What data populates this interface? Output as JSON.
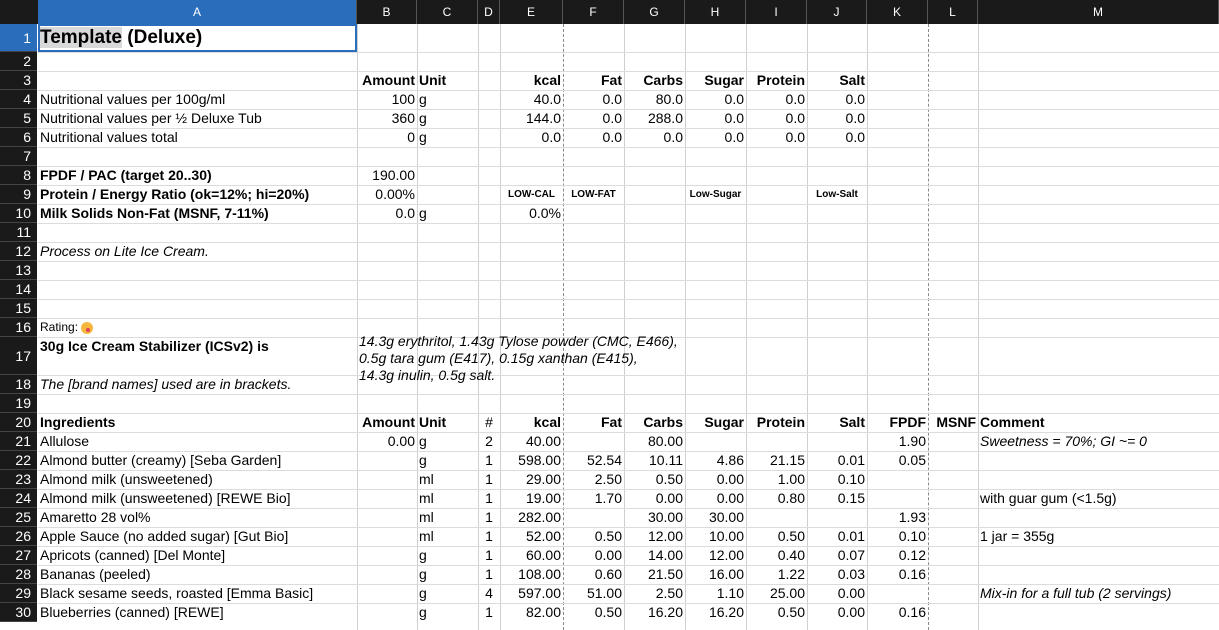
{
  "columns": [
    "A",
    "B",
    "C",
    "D",
    "E",
    "F",
    "G",
    "H",
    "I",
    "J",
    "K",
    "L",
    "M"
  ],
  "rows": [
    "1",
    "2",
    "3",
    "4",
    "5",
    "6",
    "7",
    "8",
    "9",
    "10",
    "11",
    "12",
    "13",
    "14",
    "15",
    "16",
    "17",
    "18",
    "19",
    "20",
    "21",
    "22",
    "23",
    "24",
    "25",
    "26",
    "27",
    "28",
    "29",
    "30"
  ],
  "title": {
    "main": "Template",
    "rest": " (Deluxe)"
  },
  "summary_header": {
    "amount": "Amount",
    "unit": "Unit",
    "kcal": "kcal",
    "fat": "Fat",
    "carbs": "Carbs",
    "sugar": "Sugar",
    "protein": "Protein",
    "salt": "Salt"
  },
  "summary_rows": [
    {
      "label": "Nutritional values per 100g/ml",
      "amount": "100",
      "unit": "g",
      "kcal": "40.0",
      "fat": "0.0",
      "carbs": "80.0",
      "sugar": "0.0",
      "protein": "0.0",
      "salt": "0.0"
    },
    {
      "label": "Nutritional values per ½ Deluxe Tub",
      "amount": "360",
      "unit": "g",
      "kcal": "144.0",
      "fat": "0.0",
      "carbs": "288.0",
      "sugar": "0.0",
      "protein": "0.0",
      "salt": "0.0"
    },
    {
      "label": "Nutritional values total",
      "amount": "0",
      "unit": "g",
      "kcal": "0.0",
      "fat": "0.0",
      "carbs": "0.0",
      "sugar": "0.0",
      "protein": "0.0",
      "salt": "0.0"
    }
  ],
  "metrics": {
    "fpdf_label": "FPDF / PAC (target 20..30)",
    "fpdf_value": "190.00",
    "ratio_label": "Protein / Energy Ratio (ok=12%; hi=20%)",
    "ratio_value": "0.00%",
    "msnf_label": "Milk Solids Non-Fat (MSNF, 7-11%)",
    "msnf_value": "0.0",
    "msnf_unit": "g",
    "msnf_pct": "0.0%"
  },
  "badges": {
    "lowcal": "LOW-CAL",
    "lowfat": "LOW-FAT",
    "lowsugar": "Low-Sugar",
    "lowsalt": "Low-Salt"
  },
  "notes": {
    "process": "Process on Lite Ice Cream.",
    "rating_label": "Rating: ",
    "stabilizer_label": "30g Ice Cream Stabilizer (ICSv2) is",
    "stabilizer_line1": "14.3g erythritol, 1.43g Tylose powder (CMC, E466),",
    "stabilizer_line2": "0.5g tara gum (E417), 0.15g xanthan (E415),",
    "stabilizer_line3": "14.3g inulin, 0.5g salt.",
    "brands": "The [brand names] used are in brackets."
  },
  "ingredient_header": {
    "name": "Ingredients",
    "amount": "Amount",
    "unit": "Unit",
    "num": "#",
    "kcal": "kcal",
    "fat": "Fat",
    "carbs": "Carbs",
    "sugar": "Sugar",
    "protein": "Protein",
    "salt": "Salt",
    "fpdf": "FPDF",
    "msnf": "MSNF",
    "comment": "Comment"
  },
  "ingredients": [
    {
      "name": "Allulose",
      "amount": "0.00",
      "unit": "g",
      "num": "2",
      "kcal": "40.00",
      "fat": "",
      "carbs": "80.00",
      "sugar": "",
      "protein": "",
      "salt": "",
      "fpdf": "1.90",
      "comment": "Sweetness = 70%; GI  ~= 0",
      "comment_italic": true
    },
    {
      "name": "Almond butter (creamy) [Seba Garden]",
      "amount": "",
      "unit": "g",
      "num": "1",
      "kcal": "598.00",
      "fat": "52.54",
      "carbs": "10.11",
      "sugar": "4.86",
      "protein": "21.15",
      "salt": "0.01",
      "fpdf": "0.05",
      "comment": "",
      "comment_italic": false
    },
    {
      "name": "Almond milk (unsweetened)",
      "amount": "",
      "unit": "ml",
      "num": "1",
      "kcal": "29.00",
      "fat": "2.50",
      "carbs": "0.50",
      "sugar": "0.00",
      "protein": "1.00",
      "salt": "0.10",
      "fpdf": "",
      "comment": "",
      "comment_italic": false
    },
    {
      "name": "Almond milk (unsweetened) [REWE Bio]",
      "amount": "",
      "unit": "ml",
      "num": "1",
      "kcal": "19.00",
      "fat": "1.70",
      "carbs": "0.00",
      "sugar": "0.00",
      "protein": "0.80",
      "salt": "0.15",
      "fpdf": "",
      "comment": "with guar gum (<1.5g)",
      "comment_italic": false
    },
    {
      "name": "Amaretto 28 vol%",
      "amount": "",
      "unit": "ml",
      "num": "1",
      "kcal": "282.00",
      "fat": "",
      "carbs": "30.00",
      "sugar": "30.00",
      "protein": "",
      "salt": "",
      "fpdf": "1.93",
      "comment": "",
      "comment_italic": false
    },
    {
      "name": "Apple Sauce (no added sugar) [Gut Bio]",
      "amount": "",
      "unit": "ml",
      "num": "1",
      "kcal": "52.00",
      "fat": "0.50",
      "carbs": "12.00",
      "sugar": "10.00",
      "protein": "0.50",
      "salt": "0.01",
      "fpdf": "0.10",
      "comment": "1 jar = 355g",
      "comment_italic": false
    },
    {
      "name": "Apricots (canned) [Del Monte]",
      "amount": "",
      "unit": "g",
      "num": "1",
      "kcal": "60.00",
      "fat": "0.00",
      "carbs": "14.00",
      "sugar": "12.00",
      "protein": "0.40",
      "salt": "0.07",
      "fpdf": "0.12",
      "comment": "",
      "comment_italic": false
    },
    {
      "name": "Bananas (peeled)",
      "amount": "",
      "unit": "g",
      "num": "1",
      "kcal": "108.00",
      "fat": "0.60",
      "carbs": "21.50",
      "sugar": "16.00",
      "protein": "1.22",
      "salt": "0.03",
      "fpdf": "0.16",
      "comment": "",
      "comment_italic": false
    },
    {
      "name": "Black sesame seeds, roasted [Emma Basic]",
      "amount": "",
      "unit": "g",
      "num": "4",
      "kcal": "597.00",
      "fat": "51.00",
      "carbs": "2.50",
      "sugar": "1.10",
      "protein": "25.00",
      "salt": "0.00",
      "fpdf": "",
      "comment": "Mix-in for a full tub (2 servings)",
      "comment_italic": true
    },
    {
      "name": "Blueberries (canned) [REWE]",
      "amount": "",
      "unit": "g",
      "num": "1",
      "kcal": "82.00",
      "fat": "0.50",
      "carbs": "16.20",
      "sugar": "16.20",
      "protein": "0.50",
      "salt": "0.00",
      "fpdf": "0.16",
      "comment": "",
      "comment_italic": false
    }
  ]
}
